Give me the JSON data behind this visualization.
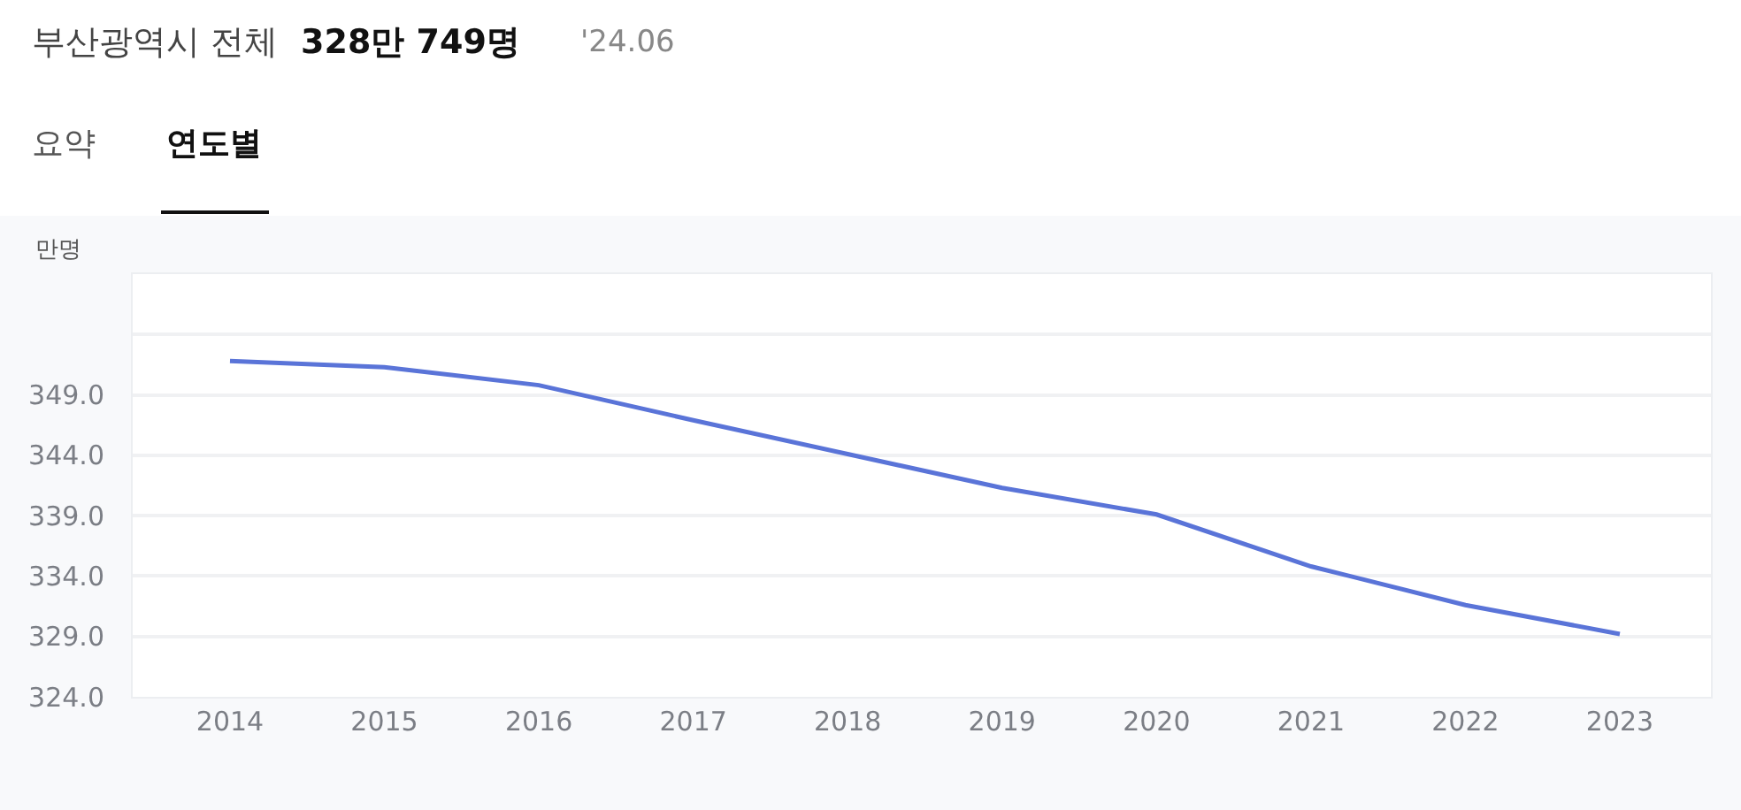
{
  "chart_data": {
    "type": "line",
    "title": "부산광역시 전체",
    "subtitle": "328만 749명",
    "annotations": [
      "'24.06",
      "요약",
      "연도별"
    ],
    "ylabel": "만명",
    "categories": [
      "2014",
      "2015",
      "2016",
      "2017",
      "2018",
      "2019",
      "2020",
      "2021",
      "2022",
      "2023"
    ],
    "series": [
      {
        "color": "#5a74d8",
        "values": [
          351.8,
          351.3,
          349.8,
          346.9,
          344.1,
          341.3,
          339.1,
          334.8,
          331.6,
          329.2
        ]
      }
    ],
    "ylim": [
      324,
      359
    ],
    "yticks": [
      {
        "value": 324,
        "label": "324.0"
      },
      {
        "value": 329,
        "label": "329.0"
      },
      {
        "value": 334,
        "label": "334.0"
      },
      {
        "value": 339,
        "label": "339.0"
      },
      {
        "value": 344,
        "label": "344.0"
      },
      {
        "value": 349,
        "label": "349.0"
      },
      {
        "value": 354,
        "label": null
      }
    ],
    "grid": "y",
    "marker": "none",
    "line_style": "solid"
  }
}
